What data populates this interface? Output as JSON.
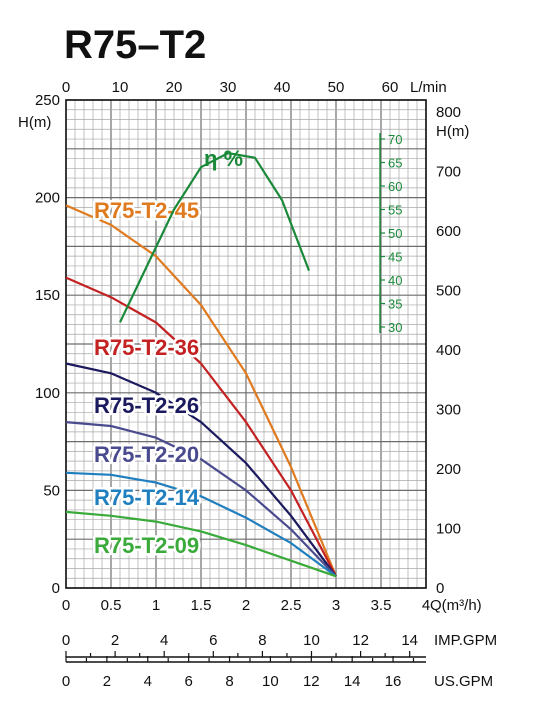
{
  "chart_data": {
    "type": "line",
    "title": "R75–T2",
    "x_axis": {
      "label": "Q(m³/h)",
      "range": [
        0,
        4
      ],
      "ticks": [
        "0",
        "0.5",
        "1",
        "1.5",
        "2",
        "2.5",
        "3",
        "3.5",
        "4"
      ]
    },
    "x_axis_top": {
      "label": "L/min",
      "ticks": [
        "0",
        "10",
        "20",
        "30",
        "40",
        "50",
        "60"
      ]
    },
    "y_axis_left": {
      "label": "H(m)",
      "range": [
        0,
        250
      ],
      "ticks": [
        "0",
        "50",
        "100",
        "150",
        "200",
        "250"
      ]
    },
    "y_axis_right": {
      "label": "H(m)",
      "ticks": [
        "0",
        "100",
        "200",
        "300",
        "400",
        "500",
        "600",
        "700",
        "800"
      ]
    },
    "efficiency_scale": {
      "label": "η %",
      "ticks": [
        "30",
        "35",
        "40",
        "45",
        "50",
        "55",
        "60",
        "65",
        "70"
      ]
    },
    "imp_gpm_axis": {
      "label": "IMP.GPM",
      "ticks": [
        "0",
        "2",
        "4",
        "6",
        "8",
        "10",
        "12",
        "14"
      ]
    },
    "us_gpm_axis": {
      "label": "US.GPM",
      "ticks": [
        "0",
        "2",
        "4",
        "6",
        "8",
        "10",
        "12",
        "14",
        "16"
      ]
    },
    "series": [
      {
        "name": "R75-T2-45",
        "color": "#e07a1f",
        "x": [
          0,
          0.5,
          1.0,
          1.5,
          2.0,
          2.5,
          3.0
        ],
        "y": [
          196,
          186,
          170,
          145,
          110,
          62,
          6
        ]
      },
      {
        "name": "R75-T2-36",
        "color": "#c42222",
        "x": [
          0,
          0.5,
          1.0,
          1.5,
          2.0,
          2.5,
          3.0
        ],
        "y": [
          159,
          149,
          136,
          115,
          85,
          50,
          6
        ]
      },
      {
        "name": "R75-T2-26",
        "color": "#1c1a5e",
        "x": [
          0,
          0.5,
          1.0,
          1.5,
          2.0,
          2.5,
          3.0
        ],
        "y": [
          115,
          110,
          100,
          85,
          64,
          37,
          6
        ]
      },
      {
        "name": "R75-T2-20",
        "color": "#4a4a8e",
        "x": [
          0,
          0.5,
          1.0,
          1.5,
          2.0,
          2.5,
          3.0
        ],
        "y": [
          85,
          83,
          77,
          66,
          50,
          30,
          6
        ]
      },
      {
        "name": "R75-T2-14",
        "color": "#1f7fbf",
        "x": [
          0,
          0.5,
          1.0,
          1.5,
          2.0,
          2.5,
          3.0
        ],
        "y": [
          59,
          58,
          54,
          47,
          36,
          23,
          6
        ]
      },
      {
        "name": "R75-T2-09",
        "color": "#3aaa3a",
        "x": [
          0,
          0.5,
          1.0,
          1.5,
          2.0,
          2.5,
          3.0
        ],
        "y": [
          39,
          37,
          34,
          29,
          22,
          14,
          6
        ]
      }
    ],
    "efficiency_curve": {
      "color": "#1a8a3a",
      "x": [
        0.6,
        0.9,
        1.2,
        1.5,
        1.8,
        2.1,
        2.4,
        2.7
      ],
      "eta": [
        31,
        43,
        55,
        64,
        67,
        66,
        57,
        42
      ]
    },
    "grid": true
  }
}
